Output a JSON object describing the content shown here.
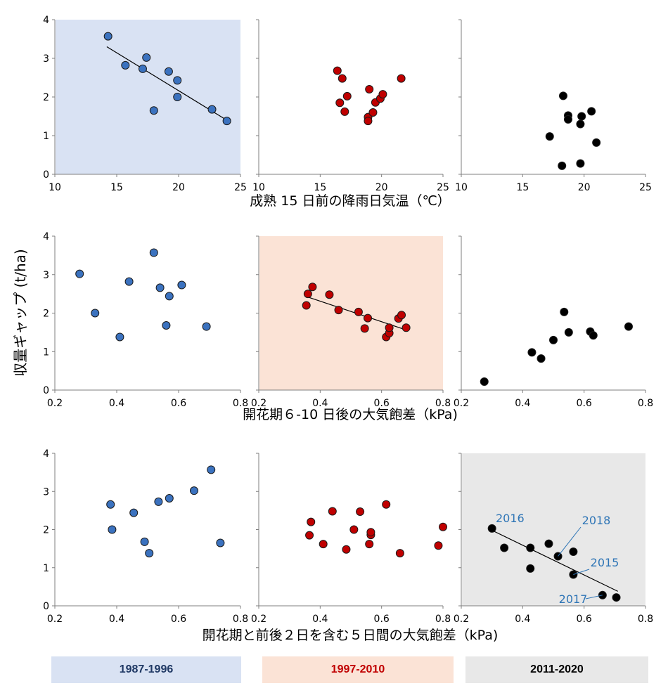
{
  "chart_data": {
    "type": "scatter",
    "ylabel": "収量ギャップ (t/ha)",
    "ylim": [
      0,
      4
    ],
    "yticks": [
      0,
      1,
      2,
      3,
      4
    ],
    "periods": [
      {
        "label": "1987-1996",
        "color": "#3b72bf",
        "bg": "#d9e2f3",
        "text_color": "#1f3864"
      },
      {
        "label": "1997-2010",
        "color": "#c00000",
        "bg": "#fbe3d6",
        "text_color": "#c00000"
      },
      {
        "label": "2011-2020",
        "color": "#000000",
        "bg": "#e8e8e8",
        "text_color": "#000000"
      }
    ],
    "rows": [
      {
        "xlabel": "成熟 15 日前の降雨日気温（℃）",
        "xlim": [
          10,
          25
        ],
        "xticks": [
          10,
          15,
          20,
          25
        ],
        "panels": [
          {
            "period": 0,
            "shaded": true,
            "trend": [
              [
                14.2,
                3.3
              ],
              [
                24,
                1.38
              ]
            ],
            "points": [
              [
                14.3,
                3.57
              ],
              [
                15.7,
                2.82
              ],
              [
                17.1,
                2.73
              ],
              [
                17.4,
                3.02
              ],
              [
                18.0,
                1.65
              ],
              [
                19.2,
                2.66
              ],
              [
                19.9,
                2.43
              ],
              [
                19.9,
                2.0
              ],
              [
                22.7,
                1.68
              ],
              [
                23.9,
                1.38
              ]
            ]
          },
          {
            "period": 1,
            "shaded": false,
            "trend": null,
            "points": [
              [
                16.4,
                2.68
              ],
              [
                16.8,
                2.48
              ],
              [
                16.6,
                1.85
              ],
              [
                17.0,
                1.62
              ],
              [
                17.2,
                2.02
              ],
              [
                19.0,
                2.2
              ],
              [
                18.9,
                1.48
              ],
              [
                18.9,
                1.38
              ],
              [
                19.3,
                1.6
              ],
              [
                19.5,
                1.86
              ],
              [
                19.9,
                1.96
              ],
              [
                20.1,
                2.07
              ],
              [
                21.6,
                2.48
              ]
            ]
          },
          {
            "period": 2,
            "shaded": false,
            "trend": null,
            "points": [
              [
                18.3,
                2.03
              ],
              [
                18.7,
                1.52
              ],
              [
                18.7,
                1.42
              ],
              [
                19.7,
                1.3
              ],
              [
                19.8,
                1.5
              ],
              [
                20.6,
                1.63
              ],
              [
                21.0,
                0.82
              ],
              [
                17.2,
                0.98
              ],
              [
                18.2,
                0.22
              ],
              [
                19.7,
                0.28
              ]
            ]
          }
        ]
      },
      {
        "xlabel": "開花期６-10 日後の大気飽差（kPa)",
        "xlim": [
          0.2,
          0.8
        ],
        "xticks": [
          0.2,
          0.4,
          0.6,
          0.8
        ],
        "panels": [
          {
            "period": 0,
            "shaded": false,
            "trend": null,
            "points": [
              [
                0.28,
                3.02
              ],
              [
                0.33,
                2.0
              ],
              [
                0.41,
                1.38
              ],
              [
                0.44,
                2.82
              ],
              [
                0.52,
                3.57
              ],
              [
                0.54,
                2.66
              ],
              [
                0.57,
                2.44
              ],
              [
                0.56,
                1.68
              ],
              [
                0.61,
                2.73
              ],
              [
                0.69,
                1.65
              ]
            ]
          },
          {
            "period": 1,
            "shaded": true,
            "trend": [
              [
                0.355,
                2.43
              ],
              [
                0.685,
                1.55
              ]
            ],
            "points": [
              [
                0.355,
                2.2
              ],
              [
                0.36,
                2.5
              ],
              [
                0.375,
                2.68
              ],
              [
                0.43,
                2.48
              ],
              [
                0.46,
                2.08
              ],
              [
                0.525,
                2.03
              ],
              [
                0.545,
                1.6
              ],
              [
                0.555,
                1.87
              ],
              [
                0.615,
                1.38
              ],
              [
                0.625,
                1.48
              ],
              [
                0.625,
                1.62
              ],
              [
                0.655,
                1.86
              ],
              [
                0.665,
                1.95
              ],
              [
                0.68,
                1.62
              ]
            ]
          },
          {
            "period": 2,
            "shaded": false,
            "trend": null,
            "points": [
              [
                0.275,
                0.22
              ],
              [
                0.43,
                0.98
              ],
              [
                0.46,
                0.82
              ],
              [
                0.5,
                1.3
              ],
              [
                0.535,
                2.03
              ],
              [
                0.55,
                1.5
              ],
              [
                0.62,
                1.52
              ],
              [
                0.63,
                1.42
              ],
              [
                0.745,
                1.65
              ]
            ]
          }
        ]
      },
      {
        "xlabel": "開花期と前後２日を含む５日間の大気飽差（kPa)",
        "xlim": [
          0.2,
          0.8
        ],
        "xticks": [
          0.2,
          0.4,
          0.6,
          0.8
        ],
        "panels": [
          {
            "period": 0,
            "shaded": false,
            "trend": null,
            "points": [
              [
                0.38,
                2.66
              ],
              [
                0.385,
                2.0
              ],
              [
                0.455,
                2.44
              ],
              [
                0.49,
                1.68
              ],
              [
                0.505,
                1.38
              ],
              [
                0.535,
                2.73
              ],
              [
                0.57,
                2.82
              ],
              [
                0.65,
                3.02
              ],
              [
                0.705,
                3.57
              ],
              [
                0.735,
                1.65
              ]
            ]
          },
          {
            "period": 1,
            "shaded": false,
            "trend": null,
            "points": [
              [
                0.365,
                1.85
              ],
              [
                0.37,
                2.2
              ],
              [
                0.41,
                1.62
              ],
              [
                0.44,
                2.48
              ],
              [
                0.485,
                1.48
              ],
              [
                0.51,
                2.0
              ],
              [
                0.53,
                2.47
              ],
              [
                0.56,
                1.62
              ],
              [
                0.565,
                1.86
              ],
              [
                0.565,
                1.93
              ],
              [
                0.615,
                2.66
              ],
              [
                0.66,
                1.38
              ],
              [
                0.785,
                1.58
              ],
              [
                0.8,
                2.07
              ]
            ]
          },
          {
            "period": 2,
            "shaded": true,
            "trend": [
              [
                0.295,
                2.0
              ],
              [
                0.71,
                0.38
              ]
            ],
            "points": [
              [
                0.3,
                2.03
              ],
              [
                0.34,
                1.52
              ],
              [
                0.425,
                1.52
              ],
              [
                0.425,
                0.98
              ],
              [
                0.485,
                1.63
              ],
              [
                0.515,
                1.3
              ],
              [
                0.565,
                1.42
              ],
              [
                0.565,
                0.82
              ],
              [
                0.66,
                0.28
              ],
              [
                0.705,
                0.22
              ]
            ],
            "annotations": [
              {
                "text": "2016",
                "x": 0.3,
                "y": 2.03
              },
              {
                "text": "2018",
                "x": 0.515,
                "y": 1.3
              },
              {
                "text": "2015",
                "x": 0.565,
                "y": 0.82
              },
              {
                "text": "2017",
                "x": 0.66,
                "y": 0.28
              }
            ]
          }
        ]
      }
    ]
  },
  "legend": {
    "p0": "1987-1996",
    "p1": "1997-2010",
    "p2": "2011-2020"
  }
}
